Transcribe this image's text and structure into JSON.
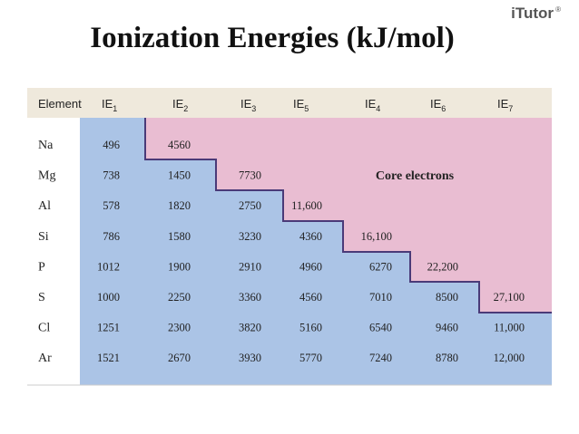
{
  "title": "Ionization Energies (kJ/mol)",
  "logo": {
    "text": "iTutor",
    "mark": "®"
  },
  "table": {
    "header": [
      "Element",
      {
        "main": "IE",
        "sub": "1"
      },
      {
        "main": "IE",
        "sub": "2"
      },
      {
        "main": "IE",
        "sub": "3"
      },
      {
        "main": "IE",
        "sub": "5"
      },
      {
        "main": "IE",
        "sub": "4"
      },
      {
        "main": "IE",
        "sub": "6"
      },
      {
        "main": "IE",
        "sub": "7"
      }
    ],
    "region_label": "Core electrons",
    "rows": [
      {
        "element": "Na",
        "values": [
          496,
          4560
        ]
      },
      {
        "element": "Mg",
        "values": [
          738,
          1450,
          7730
        ]
      },
      {
        "element": "Al",
        "values": [
          578,
          1820,
          2750,
          "11,600"
        ]
      },
      {
        "element": "Si",
        "values": [
          786,
          1580,
          3230,
          4360,
          "16,100"
        ]
      },
      {
        "element": "P",
        "values": [
          1012,
          1900,
          2910,
          4960,
          6270,
          "22,200"
        ]
      },
      {
        "element": "S",
        "values": [
          1000,
          2250,
          3360,
          4560,
          7010,
          8500,
          "27,100"
        ]
      },
      {
        "element": "Cl",
        "values": [
          1251,
          2300,
          3820,
          5160,
          6540,
          9460,
          "11,000"
        ]
      },
      {
        "element": "Ar",
        "values": [
          1521,
          2670,
          3930,
          5770,
          7240,
          8780,
          "12,000"
        ]
      }
    ]
  }
}
